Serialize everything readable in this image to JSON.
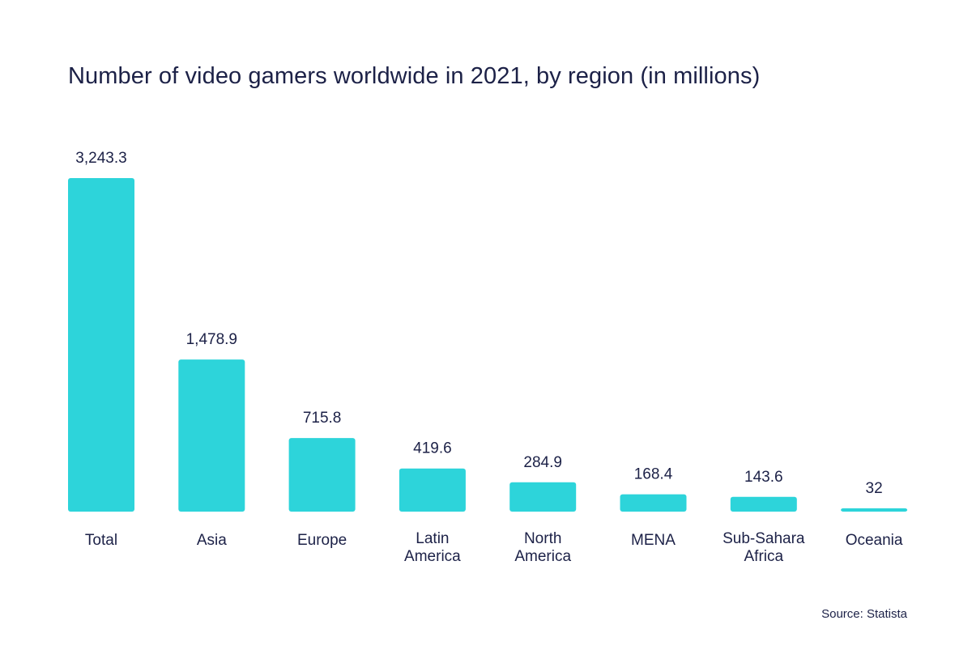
{
  "chart_data": {
    "type": "bar",
    "title": "Number of video gamers worldwide in 2021, by region (in millions)",
    "xlabel": "",
    "ylabel": "",
    "categories": [
      "Total",
      "Asia",
      "Europe",
      "Latin America",
      "North America",
      "MENA",
      "Sub-Sahara Africa",
      "Oceania"
    ],
    "category_lines": [
      [
        "Total"
      ],
      [
        "Asia"
      ],
      [
        "Europe"
      ],
      [
        "Latin",
        "America"
      ],
      [
        "North",
        "America"
      ],
      [
        "MENA"
      ],
      [
        "Sub-Sahara",
        "Africa"
      ],
      [
        "Oceania"
      ]
    ],
    "values": [
      3243.3,
      1478.9,
      715.8,
      419.6,
      284.9,
      168.4,
      143.6,
      32
    ],
    "value_labels": [
      "3,243.3",
      "1,478.9",
      "715.8",
      "419.6",
      "284.9",
      "168.4",
      "143.6",
      "32"
    ],
    "ylim": [
      0,
      3243.3
    ],
    "grid": false,
    "legend": "none",
    "bar_color": "#2dd4da",
    "text_color": "#1c2147",
    "source": "Source: Statista"
  }
}
